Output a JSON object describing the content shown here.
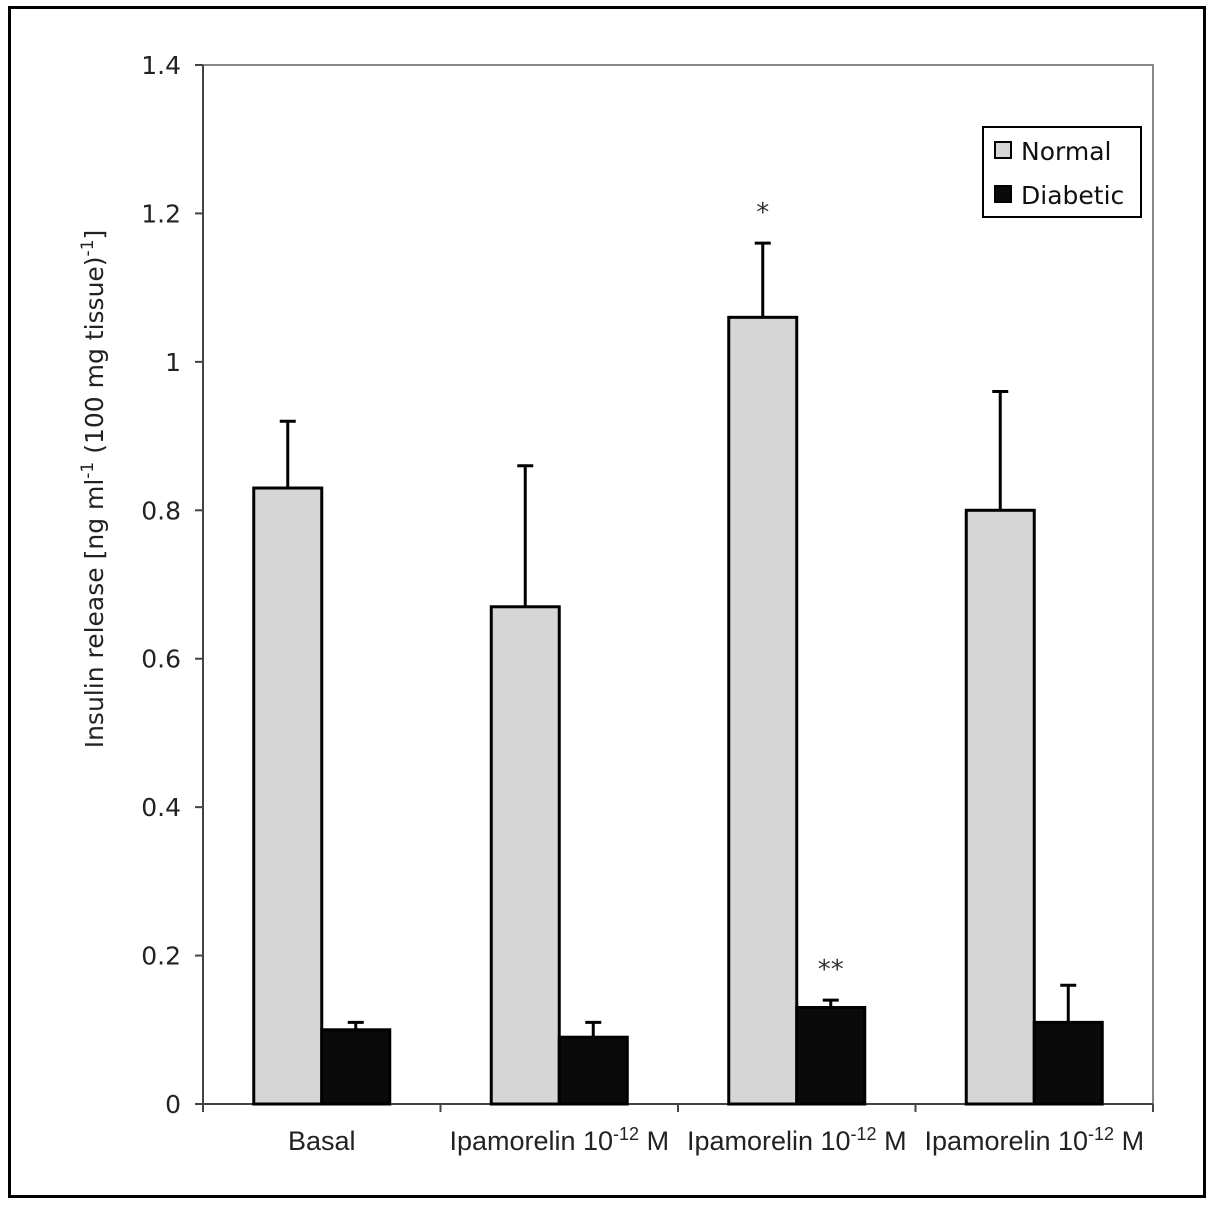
{
  "chart_data": {
    "type": "bar",
    "title": "",
    "xlabel": "",
    "ylabel": {
      "base": "Insulin release [ng ml",
      "sup1": "-1",
      "mid": " (100 mg tissue)",
      "sup2": "-1",
      "end": "]"
    },
    "ylim": [
      0,
      1.4
    ],
    "yticks": [
      0,
      0.2,
      0.4,
      0.6,
      0.8,
      1,
      1.2,
      1.4
    ],
    "ytick_labels": [
      "0",
      "0.2",
      "0.4",
      "0.6",
      "0.8",
      "1",
      "1.2",
      "1.4"
    ],
    "categories": [
      {
        "label": "Basal",
        "sup": "",
        "suffix": ""
      },
      {
        "label": "Ipamorelin 10",
        "sup": "-12",
        "suffix": " M"
      },
      {
        "label": "Ipamorelin 10",
        "sup": "-12",
        "suffix": " M"
      },
      {
        "label": "Ipamorelin 10",
        "sup": "-12",
        "suffix": " M"
      }
    ],
    "series": [
      {
        "name": "Normal",
        "color": "#d6d6d6",
        "values": [
          0.83,
          0.67,
          1.06,
          0.8
        ],
        "errors": [
          0.09,
          0.19,
          0.1,
          0.16
        ],
        "annotations": [
          "",
          "",
          "*",
          ""
        ]
      },
      {
        "name": "Diabetic",
        "color": "#0a0a0a",
        "values": [
          0.1,
          0.09,
          0.13,
          0.11
        ],
        "errors": [
          0.01,
          0.02,
          0.01,
          0.05
        ],
        "annotations": [
          "",
          "",
          "**",
          ""
        ]
      }
    ],
    "legend": {
      "position": "top-right",
      "entries": [
        "Normal",
        "Diabetic"
      ]
    },
    "grid": false
  }
}
